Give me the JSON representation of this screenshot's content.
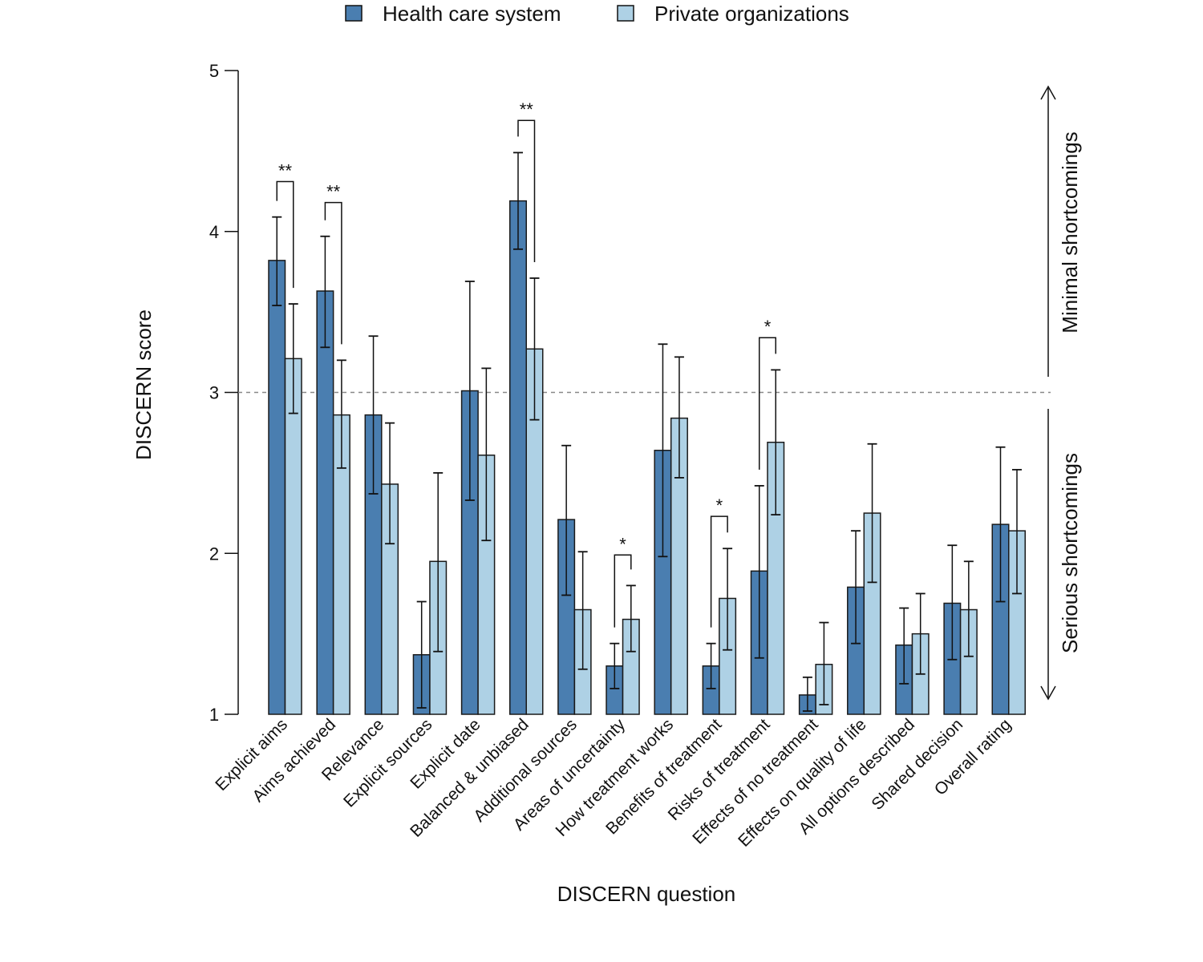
{
  "chart_data": {
    "type": "bar",
    "title": "",
    "xlabel": "DISCERN question",
    "ylabel": "DISCERN score",
    "ylim": [
      1,
      5
    ],
    "yticks": [
      "1",
      "2",
      "3",
      "4",
      "5"
    ],
    "reference_line": 3,
    "legend_position": "top-center",
    "categories": [
      "Explicit aims",
      "Aims achieved",
      "Relevance",
      "Explicit sources",
      "Explicit date",
      "Balanced & unbiased",
      "Additional sources",
      "Areas of uncertainty",
      "How treatment works",
      "Benefits of treatment",
      "Risks of treatment",
      "Effects of no treatment",
      "Effects on quality of life",
      "All options described",
      "Shared decision",
      "Overall rating"
    ],
    "series": [
      {
        "name": "Health care system",
        "color": "#4a7eb0",
        "values": [
          3.82,
          3.63,
          2.86,
          1.37,
          3.01,
          4.19,
          2.21,
          1.3,
          2.64,
          1.3,
          1.89,
          1.12,
          1.79,
          1.43,
          1.69,
          2.18
        ],
        "err_high": [
          4.09,
          3.97,
          3.35,
          1.7,
          3.69,
          4.49,
          2.67,
          1.44,
          3.3,
          1.44,
          2.42,
          1.23,
          2.14,
          1.66,
          2.05,
          2.66
        ],
        "err_low": [
          3.54,
          3.28,
          2.37,
          1.04,
          2.33,
          3.89,
          1.74,
          1.16,
          1.98,
          1.16,
          1.35,
          1.02,
          1.44,
          1.19,
          1.34,
          1.7
        ]
      },
      {
        "name": "Private organizations",
        "color": "#aed1e5",
        "values": [
          3.21,
          2.86,
          2.43,
          1.95,
          2.61,
          3.27,
          1.65,
          1.59,
          2.84,
          1.72,
          2.69,
          1.31,
          2.25,
          1.5,
          1.65,
          2.14
        ],
        "err_high": [
          3.55,
          3.2,
          2.81,
          2.5,
          3.15,
          3.71,
          2.01,
          1.8,
          3.22,
          2.03,
          3.14,
          1.57,
          2.68,
          1.75,
          1.95,
          2.52
        ],
        "err_low": [
          2.87,
          2.53,
          2.06,
          1.39,
          2.08,
          2.83,
          1.28,
          1.39,
          2.47,
          1.4,
          2.24,
          1.06,
          1.82,
          1.25,
          1.36,
          1.75
        ]
      }
    ],
    "significance": [
      {
        "category_index": 0,
        "label": "**",
        "bracket_top": 4.31
      },
      {
        "category_index": 1,
        "label": "**",
        "bracket_top": 4.18
      },
      {
        "category_index": 5,
        "label": "**",
        "bracket_top": 4.69
      },
      {
        "category_index": 7,
        "label": "*",
        "bracket_top": 1.99
      },
      {
        "category_index": 9,
        "label": "*",
        "bracket_top": 2.23
      },
      {
        "category_index": 10,
        "label": "*",
        "bracket_top": 3.34
      }
    ],
    "annotations": {
      "upper": "Minimal shortcomings",
      "lower": "Serious shortcomings"
    }
  }
}
